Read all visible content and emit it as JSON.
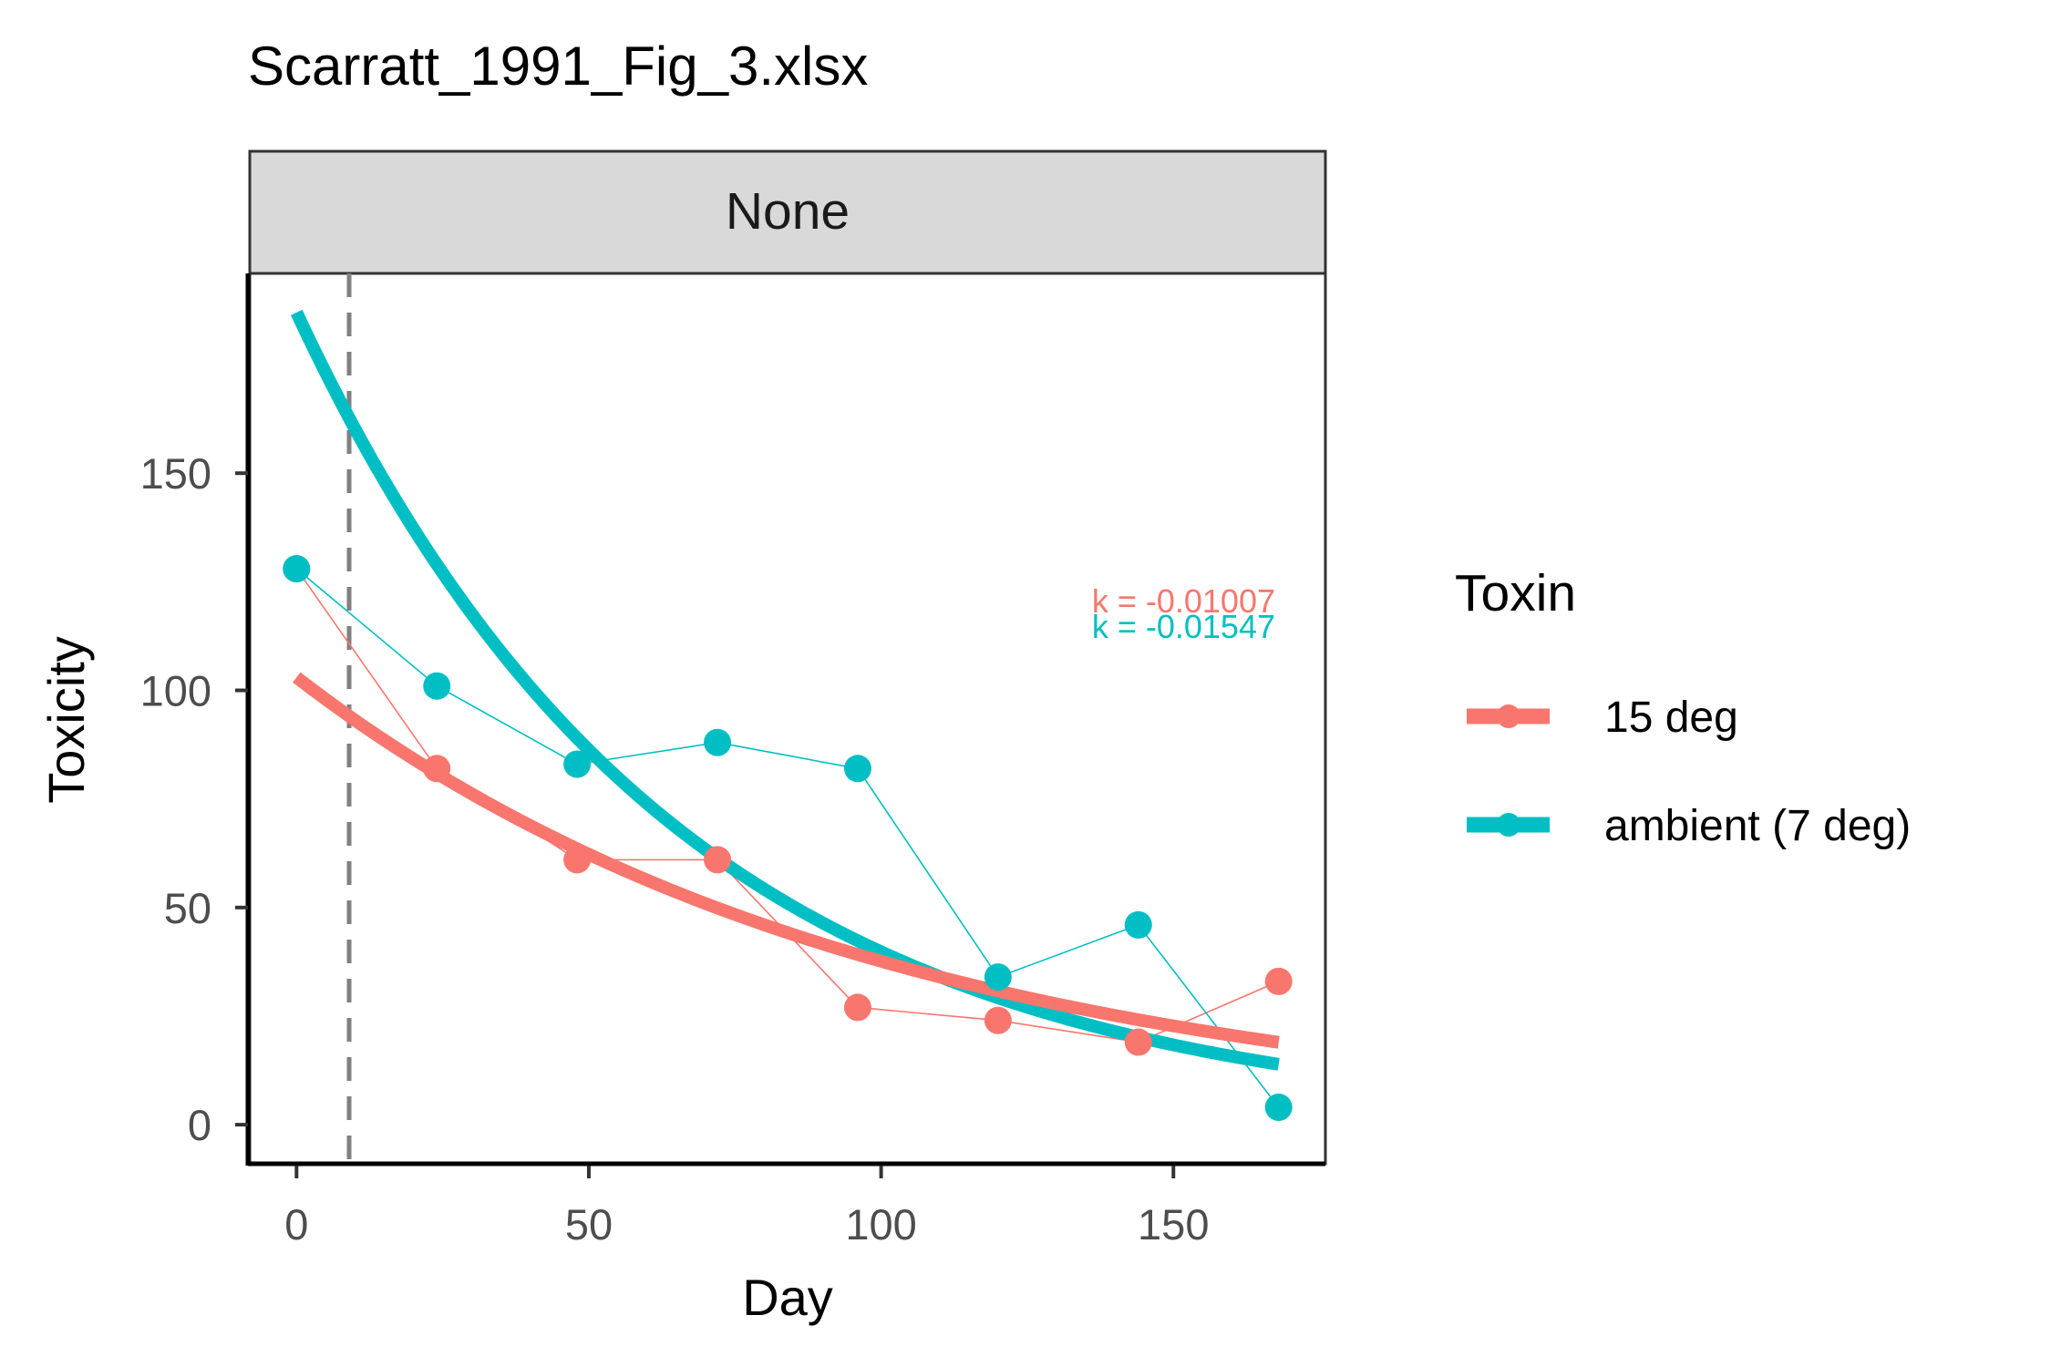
{
  "chart_data": {
    "type": "line",
    "title": "Scarratt_1991_Fig_3.xlsx",
    "facet_label": "None",
    "xlabel": "Day",
    "ylabel": "Toxicity",
    "xlim": [
      -8,
      176
    ],
    "ylim": [
      -9,
      196
    ],
    "x_ticks": [
      0,
      50,
      100,
      150
    ],
    "y_ticks": [
      0,
      50,
      100,
      150
    ],
    "x_tick_labels": [
      "0",
      "50",
      "100",
      "150"
    ],
    "y_tick_labels": [
      "0",
      "50",
      "100",
      "150"
    ],
    "vline_x": 9,
    "grid": false,
    "legend_position": "right",
    "legend_title": "Toxin",
    "series": [
      {
        "name": "15 deg",
        "color": "#F8766D",
        "x": [
          0,
          24,
          48,
          72,
          96,
          120,
          144,
          168
        ],
        "y": [
          128,
          82,
          61,
          61,
          27,
          24,
          19,
          33
        ],
        "fit": {
          "a": 103,
          "k": -0.01007
        },
        "k_label": "k = -0.01007"
      },
      {
        "name": "ambient (7 deg)",
        "color": "#00BFC4",
        "x": [
          0,
          24,
          48,
          72,
          96,
          120,
          144,
          168
        ],
        "y": [
          128,
          101,
          83,
          88,
          82,
          34,
          46,
          4
        ],
        "fit": {
          "a": 187,
          "k": -0.01547
        },
        "k_label": "k = -0.01547"
      }
    ]
  }
}
